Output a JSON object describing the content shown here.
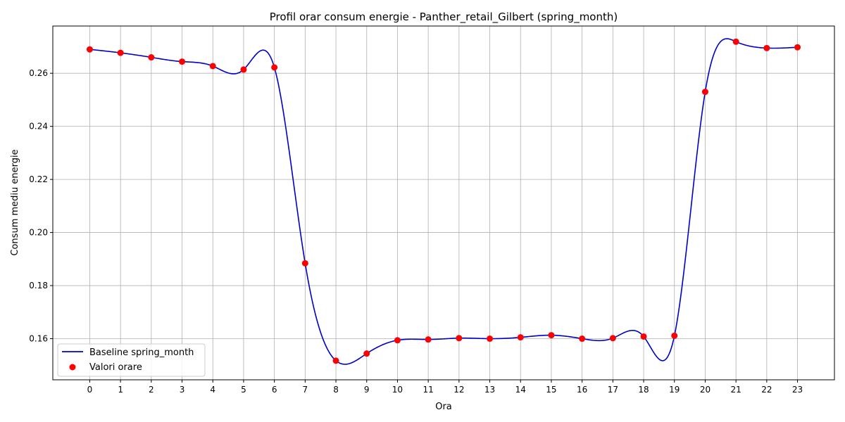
{
  "chart_data": {
    "type": "line",
    "title": "Profil orar consum energie - Panther_retail_Gilbert (spring_month)",
    "xlabel": "Ora",
    "ylabel": "Consum mediu energie",
    "x": [
      0,
      1,
      2,
      3,
      4,
      5,
      6,
      7,
      8,
      9,
      10,
      11,
      12,
      13,
      14,
      15,
      16,
      17,
      18,
      19,
      20,
      21,
      22,
      23
    ],
    "x_ticks": [
      "0",
      "1",
      "2",
      "3",
      "4",
      "5",
      "6",
      "7",
      "8",
      "9",
      "10",
      "11",
      "12",
      "13",
      "14",
      "15",
      "16",
      "17",
      "18",
      "19",
      "20",
      "21",
      "22",
      "23"
    ],
    "xlim": [
      -1.2,
      24.2
    ],
    "y_ticks": [
      "0.16",
      "0.18",
      "0.20",
      "0.22",
      "0.24",
      "0.26"
    ],
    "y_tick_values": [
      0.16,
      0.18,
      0.2,
      0.22,
      0.24,
      0.26
    ],
    "ylim": [
      0.1445,
      0.2778
    ],
    "grid": true,
    "legend_position": "lower-left",
    "series": [
      {
        "name": "Baseline spring_month",
        "kind": "line",
        "color": "#0000cc",
        "values": [
          0.269,
          0.2677,
          0.266,
          0.2644,
          0.2627,
          0.2614,
          0.2622,
          0.1884,
          0.1517,
          0.1544,
          0.1594,
          0.1597,
          0.1602,
          0.16,
          0.1605,
          0.1613,
          0.16,
          0.1602,
          0.1608,
          0.1611,
          0.253,
          0.2719,
          0.2695,
          0.2698
        ]
      },
      {
        "name": "Valori orare",
        "kind": "scatter",
        "color": "#ff0000",
        "values": [
          0.269,
          0.2677,
          0.266,
          0.2644,
          0.2627,
          0.2614,
          0.2622,
          0.1884,
          0.1517,
          0.1544,
          0.1594,
          0.1597,
          0.1602,
          0.16,
          0.1605,
          0.1613,
          0.16,
          0.1602,
          0.1608,
          0.1611,
          0.253,
          0.2719,
          0.2695,
          0.2698
        ]
      }
    ]
  }
}
